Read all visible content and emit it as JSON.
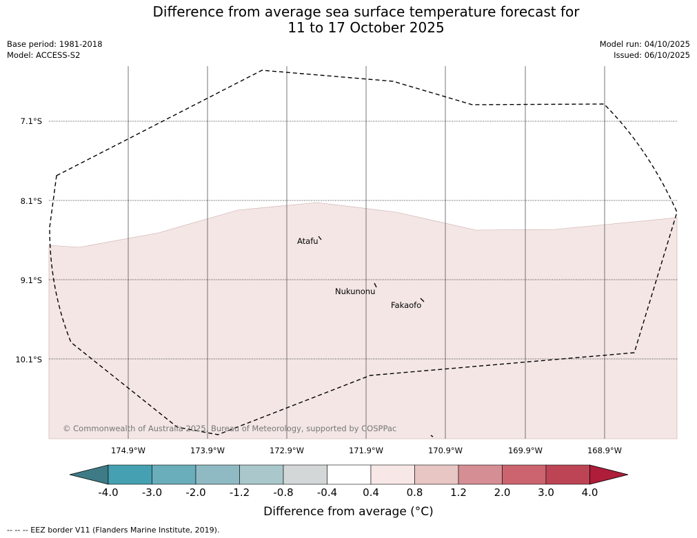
{
  "title": {
    "line1": "Difference from average sea surface temperature forecast for",
    "line2": "11 to 17 October 2025"
  },
  "meta_left": {
    "base_period": "Base period: 1981-2018",
    "model": "Model: ACCESS-S2"
  },
  "meta_right": {
    "model_run": "Model run: 04/10/2025",
    "issued": "Issued: 06/10/2025"
  },
  "map": {
    "lat_labels": [
      "7.1°S",
      "8.1°S",
      "9.1°S",
      "10.1°S"
    ],
    "lon_labels": [
      "174.9°W",
      "173.9°W",
      "172.9°W",
      "171.9°W",
      "170.9°W",
      "169.9°W",
      "168.9°W"
    ],
    "places": [
      "Atafu",
      "Nukunonu",
      "Fakaofo"
    ],
    "copyright": "© Commonwealth of Australia 2025, Bureau of Meteorology, supported by COSPPac",
    "shade_color": "#f3e6e5"
  },
  "colorbar": {
    "ticks": [
      "-4.0",
      "-3.0",
      "-2.0",
      "-1.2",
      "-0.8",
      "-0.4",
      "0.4",
      "0.8",
      "1.2",
      "2.0",
      "3.0",
      "4.0"
    ],
    "colors": [
      "#3e7b86",
      "#45a1b1",
      "#6aadbb",
      "#8fbac3",
      "#aac8cb",
      "#d4d7d7",
      "#ffffff",
      "#f7e7e6",
      "#e8c6c3",
      "#d48e94",
      "#cc6470",
      "#bd4455",
      "#ae1d3a"
    ],
    "label": "Difference from average (°C)"
  },
  "footnote": "--  --  -- EEZ border V11 (Flanders Marine Institute, 2019)."
}
